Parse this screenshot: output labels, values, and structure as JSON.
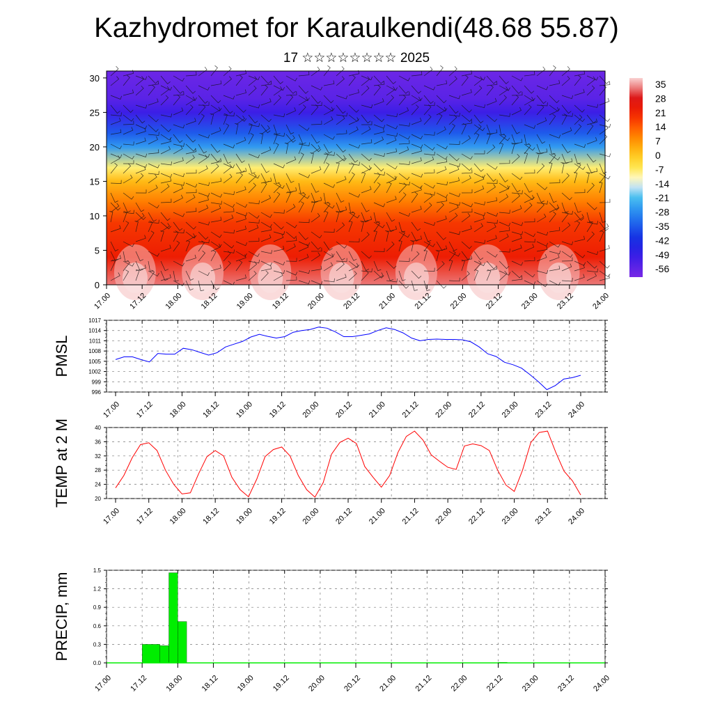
{
  "title": "Kazhydromet for Karaulkendi(48.68 55.87)",
  "subtitle": "17 ☆☆☆☆☆☆☆☆ 2025",
  "time_ticks": [
    "17.00",
    "17.12",
    "18.00",
    "18.12",
    "19.00",
    "19.12",
    "20.00",
    "20.12",
    "21.00",
    "21.12",
    "22.00",
    "22.12",
    "23.00",
    "23.12",
    "24.00"
  ],
  "colors": {
    "pmsl": "#0000ff",
    "temp": "#ff0000",
    "precip": "#00ee00"
  },
  "chart_data": [
    {
      "type": "heatmap",
      "title": "",
      "xlabel": "",
      "ylabel": "",
      "ylim": [
        0,
        31
      ],
      "yticks": [
        0,
        5,
        10,
        15,
        20,
        25,
        30
      ],
      "colorbar": {
        "labels": [
          "35",
          "28",
          "21",
          "14",
          "7",
          "0",
          "-7",
          "-14",
          "-21",
          "-28",
          "-35",
          "-42",
          "-49",
          "-56"
        ],
        "range": [
          -60,
          38
        ]
      },
      "temperature_profile": {
        "z": [
          0,
          4,
          9,
          12,
          15,
          17,
          20,
          22,
          25,
          27,
          31
        ],
        "t": [
          33,
          22,
          18,
          10,
          2,
          -8,
          -26,
          -35,
          -50,
          -55,
          -58
        ]
      },
      "overlay": "wind barbs"
    },
    {
      "type": "line",
      "ylabel": "PMSL",
      "ylim": [
        996,
        1017
      ],
      "yticks": [
        996,
        999,
        1002,
        1005,
        1008,
        1011,
        1014,
        1017
      ],
      "series": [
        {
          "values": [
            1005.5,
            1006.3,
            1006.3,
            1005.5,
            1004.8,
            1007.3,
            1007.1,
            1007.1,
            1008.8,
            1008.4,
            1007.6,
            1006.8,
            1007.5,
            1009.2,
            1010.0,
            1010.8,
            1012.1,
            1012.9,
            1012.3,
            1011.8,
            1012.2,
            1013.5,
            1014.0,
            1014.3,
            1015.0,
            1014.7,
            1013.6,
            1012.2,
            1012.2,
            1012.6,
            1013.0,
            1014.0,
            1014.8,
            1014.3,
            1013.3,
            1011.8,
            1011.0,
            1011.4,
            1011.5,
            1011.4,
            1011.4,
            1011.3,
            1010.7,
            1009.2,
            1007.2,
            1006.4,
            1004.7,
            1004.0,
            1003.0,
            1001.1,
            999.0,
            996.7,
            997.9,
            999.8,
            1000.2,
            1000.9
          ]
        }
      ]
    },
    {
      "type": "line",
      "ylabel": "TEMP at 2 M",
      "ylim": [
        20,
        40
      ],
      "yticks": [
        20,
        24,
        28,
        32,
        36,
        40
      ],
      "series": [
        {
          "values": [
            23.0,
            26.5,
            31.5,
            35.2,
            35.7,
            33.5,
            28.0,
            24.0,
            21.3,
            21.6,
            27.0,
            31.8,
            33.5,
            32.0,
            26.0,
            22.5,
            20.5,
            25.5,
            31.8,
            33.8,
            34.5,
            32.0,
            26.5,
            22.5,
            20.4,
            24.5,
            32.5,
            35.8,
            37.0,
            35.5,
            29.0,
            26.0,
            23.2,
            26.5,
            33.0,
            37.5,
            39.0,
            36.5,
            32.3,
            30.5,
            28.8,
            28.2,
            34.8,
            35.4,
            34.9,
            33.5,
            28.0,
            23.8,
            22.0,
            28.0,
            35.8,
            38.6,
            39.0,
            33.0,
            27.7,
            25.0,
            21.0
          ]
        }
      ]
    },
    {
      "type": "bar",
      "ylabel": "PRECIP, mm",
      "ylim": [
        0,
        1.5
      ],
      "yticks": [
        "0.0",
        "0.3",
        "0.6",
        "0.9",
        "1.2",
        "1.5"
      ],
      "bars": [
        {
          "x": [
            0,
            1
          ],
          "value": 0
        },
        {
          "x": [
            1,
            1.5
          ],
          "value": 0.3
        },
        {
          "x": [
            1.5,
            1.75
          ],
          "value": 0.28
        },
        {
          "x": [
            1.75,
            2
          ],
          "value": 1.46
        },
        {
          "x": [
            2,
            2.25
          ],
          "value": 0.67
        },
        {
          "x": [
            2.25,
            11.0
          ],
          "value": 0
        },
        {
          "x": [
            11.0,
            11.25
          ],
          "value": 0.01
        },
        {
          "x": [
            11.25,
            14
          ],
          "value": 0
        }
      ]
    }
  ]
}
